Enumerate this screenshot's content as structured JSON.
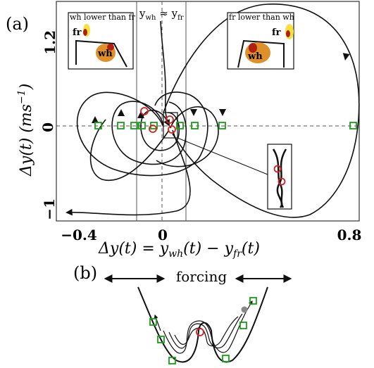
{
  "panel_a": {
    "label": "(a)",
    "y_axis_label": "Δy(t)  (ms",
    "y_axis_unit_exp": "−1",
    "y_axis_close": ")",
    "y_ticks": [
      "1.2",
      "0",
      "−1"
    ],
    "x_ticks": [
      "−0.4",
      "0",
      "0.8"
    ],
    "x_axis_label": "Δy(t) = y",
    "x_axis_sub1": "wh",
    "x_axis_mid": "(t) − y",
    "x_axis_sub2": "fr",
    "x_axis_end": "(t)",
    "center_label_a": "y",
    "center_label_sub_a": "wh",
    "center_label_eq": " ≈ y",
    "center_label_sub_b": "fr",
    "inset_left": {
      "title": "wh lower than fr",
      "fr": "fr",
      "wh": "wh"
    },
    "inset_right": {
      "title": "fr lower than wh",
      "fr": "fr",
      "wh": "wh"
    }
  },
  "panel_b": {
    "label": "(b)",
    "forcing_label": "forcing"
  },
  "colors": {
    "green_marker": "#1a9e1a",
    "red_marker": "#d42020",
    "orange_blob": "#e0902a",
    "yellow_blob": "#f5e040",
    "dark_red": "#b02010",
    "grey_ball": "#888888"
  }
}
